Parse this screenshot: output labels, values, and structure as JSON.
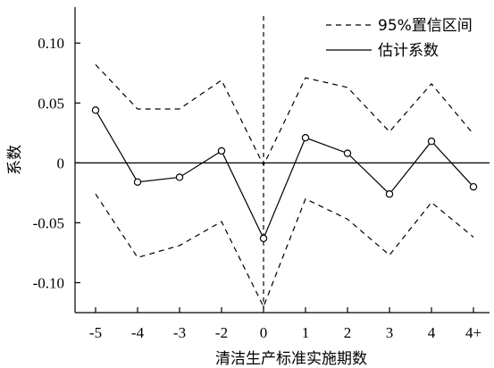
{
  "chart_data": {
    "type": "line",
    "xlabel": "清洁生产标准实施期数",
    "ylabel": "系数",
    "categories": [
      "-5",
      "-4",
      "-3",
      "-2",
      "0",
      "1",
      "2",
      "3",
      "4",
      "4+"
    ],
    "ylim": [
      -0.125,
      0.13
    ],
    "yticks": [
      0.1,
      0.05,
      0,
      -0.05,
      -0.1
    ],
    "ytick_labels": [
      "0.10",
      "0.05",
      "0",
      "-0.05",
      "-0.10"
    ],
    "series": [
      {
        "name": "估计系数",
        "style": "solid",
        "markers": true,
        "values": [
          0.044,
          -0.016,
          -0.012,
          0.01,
          -0.063,
          0.021,
          0.008,
          -0.026,
          0.018,
          -0.02
        ]
      },
      {
        "name": "95%置信区间",
        "style": "dashed",
        "upper": [
          0.082,
          0.045,
          0.045,
          0.069,
          -0.002,
          0.071,
          0.063,
          0.026,
          0.066,
          0.024
        ],
        "lower": [
          -0.026,
          -0.079,
          -0.069,
          -0.049,
          -0.12,
          -0.03,
          -0.047,
          -0.077,
          -0.033,
          -0.062
        ]
      }
    ],
    "reference_lines": {
      "horizontal_at_y": 0,
      "vertical_dashed_at_category": "0"
    },
    "legend": {
      "position": "top-right"
    },
    "grid": false,
    "colors": {
      "line": "#000000",
      "background": "#ffffff"
    }
  }
}
